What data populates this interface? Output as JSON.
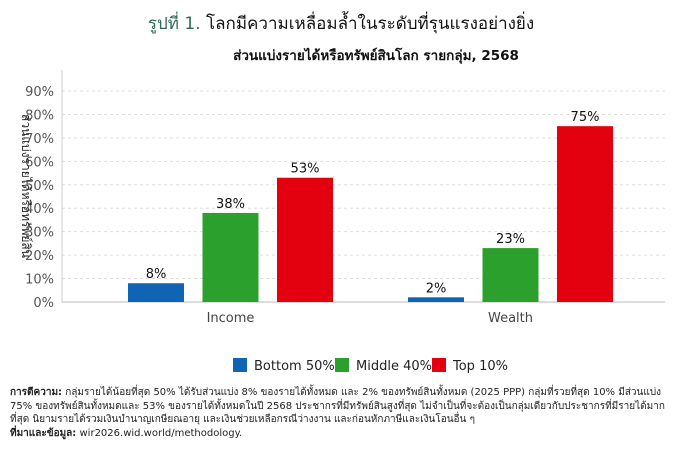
{
  "header": {
    "figure_label": "รูปที่ 1.",
    "title": "โลกมีความเหลื่อมล้ำในระดับที่รุนแรงอย่างยิ่ง"
  },
  "chart_data": {
    "type": "bar",
    "title": "ส่วนแบ่งรายได้หรือทรัพย์สินโลก รายกลุ่ม, 2568",
    "xlabel": "",
    "ylabel": "ส่วนแบ่งรายได้หรือทรัพย์สิน",
    "ylim": [
      0,
      90
    ],
    "yticks": [
      "0%",
      "10%",
      "20%",
      "30%",
      "40%",
      "50%",
      "60%",
      "70%",
      "80%",
      "90%"
    ],
    "grid": true,
    "legend_position": "bottom",
    "categories": [
      "Income",
      "Wealth"
    ],
    "series": [
      {
        "name": "Bottom 50%",
        "color": "#0f64b4",
        "values": [
          8,
          2
        ],
        "labels": [
          "8%",
          "2%"
        ]
      },
      {
        "name": "Middle 40%",
        "color": "#2ca02c",
        "values": [
          38,
          23
        ],
        "labels": [
          "38%",
          "23%"
        ]
      },
      {
        "name": "Top 10%",
        "color": "#e3000f",
        "values": [
          53,
          75
        ],
        "labels": [
          "53%",
          "75%"
        ]
      }
    ]
  },
  "notes": {
    "interpretation_label": "การตีความ:",
    "interpretation_text": "กลุ่มรายได้น้อยที่สุด 50% ได้รับส่วนแบ่ง 8% ของรายได้ทั้งหมด และ 2% ของทรัพย์สินทั้งหมด (2025 PPP) กลุ่มที่รวยที่สุด 10% มีส่วนแบ่ง 75% ของทรัพย์สินทั้งหมดและ 53% ของรายได้ทั้งหมดในปี 2568 ประชากรที่มีทรัพย์สินสูงที่สุด ไม่จำเป็นที่จะต้องเป็นกลุ่มเดียวกับประชากรที่มีรายได้มากที่สุด นิยามรายได้รวมเงินบำนาญเกษียณอายุ และเงินช่วยเหลือกรณีว่างงาน และก่อนหักภาษีและเงินโอนอื่น ๆ",
    "source_label": "ที่มาและข้อมูล:",
    "source_text": "wir2026.wid.world/methodology."
  }
}
